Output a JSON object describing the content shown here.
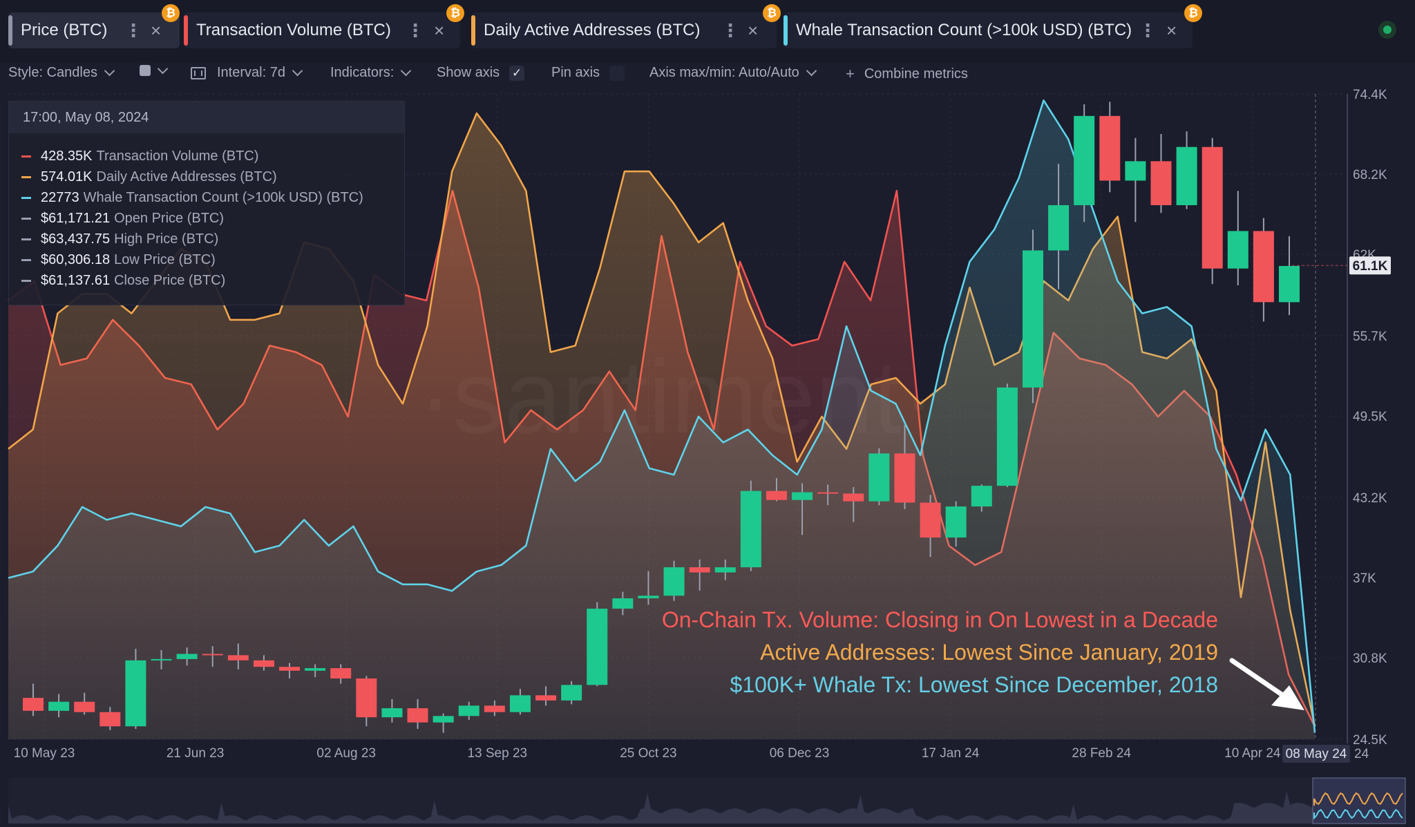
{
  "tabs": [
    {
      "label": "Price (BTC)",
      "color": "#8f93a6",
      "active": true
    },
    {
      "label": "Transaction Volume (BTC)",
      "color": "#ef5350",
      "active": false
    },
    {
      "label": "Daily Active Addresses (BTC)",
      "color": "#f2a64a",
      "active": false
    },
    {
      "label": "Whale Transaction Count (>100k USD) (BTC)",
      "color": "#5ed3ea",
      "active": false
    }
  ],
  "coin_badge": "₿",
  "toolbar": {
    "style": "Style: Candles",
    "interval": "Interval: 7d",
    "indicators": "Indicators:",
    "show_axis": "Show axis",
    "show_axis_checked": true,
    "pin_axis": "Pin axis",
    "axis_maxmin": "Axis max/min: Auto/Auto",
    "combine": "Combine metrics"
  },
  "tooltip": {
    "datetime": "17:00, May 08, 2024",
    "rows": [
      {
        "value": "428.35K",
        "label": "Transaction Volume (BTC)",
        "color": "#ef5350"
      },
      {
        "value": "574.01K",
        "label": "Daily Active Addresses (BTC)",
        "color": "#f2a64a"
      },
      {
        "value": "22773",
        "label": "Whale Transaction Count (>100k USD) (BTC)",
        "color": "#5ed3ea"
      },
      {
        "value": "$61,171.21",
        "label": "Open Price (BTC)",
        "color": "#9a9db0"
      },
      {
        "value": "$63,437.75",
        "label": "High Price (BTC)",
        "color": "#9a9db0"
      },
      {
        "value": "$60,306.18",
        "label": "Low Price (BTC)",
        "color": "#9a9db0"
      },
      {
        "value": "$61,137.61",
        "label": "Close Price (BTC)",
        "color": "#9a9db0"
      }
    ]
  },
  "annotations": [
    "On-Chain Tx. Volume: Closing in On Lowest in a Decade",
    "Active Addresses: Lowest Since January, 2019",
    "$100K+ Whale Tx: Lowest Since December, 2018"
  ],
  "watermark": "·santiment·",
  "chart_data": {
    "type": "line",
    "price_axis": {
      "ticks": [
        "74.4K",
        "68.2K",
        "62K",
        "55.7K",
        "49.5K",
        "43.2K",
        "37K",
        "30.8K",
        "24.5K"
      ],
      "tick_values": [
        74400,
        68200,
        62000,
        55700,
        49500,
        43200,
        37000,
        30800,
        24500
      ],
      "current_price_label": "61.1K",
      "current_price_value": 61137.61
    },
    "x_labels": [
      "10 May 23",
      "21 Jun 23",
      "02 Aug 23",
      "13 Sep 23",
      "25 Oct 23",
      "06 Dec 23",
      "17 Jan 24",
      "28 Feb 24",
      "10 Apr 24"
    ],
    "x_cursor_label": "08 May 24",
    "x_cursor_suffix": "24",
    "candles": [
      {
        "o": 27700,
        "h": 28800,
        "l": 26300,
        "c": 26700
      },
      {
        "o": 26700,
        "h": 28000,
        "l": 26200,
        "c": 27400
      },
      {
        "o": 27400,
        "h": 28100,
        "l": 26400,
        "c": 26600
      },
      {
        "o": 26600,
        "h": 27000,
        "l": 25200,
        "c": 25500
      },
      {
        "o": 25500,
        "h": 31500,
        "l": 25300,
        "c": 30600
      },
      {
        "o": 30600,
        "h": 31400,
        "l": 29900,
        "c": 30700
      },
      {
        "o": 30700,
        "h": 31600,
        "l": 30200,
        "c": 31100
      },
      {
        "o": 31100,
        "h": 31700,
        "l": 30100,
        "c": 31000
      },
      {
        "o": 31000,
        "h": 31900,
        "l": 29900,
        "c": 30600
      },
      {
        "o": 30600,
        "h": 31000,
        "l": 29800,
        "c": 30100
      },
      {
        "o": 30100,
        "h": 30400,
        "l": 29200,
        "c": 29800
      },
      {
        "o": 29800,
        "h": 30300,
        "l": 29300,
        "c": 30000
      },
      {
        "o": 30000,
        "h": 30300,
        "l": 28800,
        "c": 29200
      },
      {
        "o": 29200,
        "h": 29400,
        "l": 25500,
        "c": 26200
      },
      {
        "o": 26200,
        "h": 27600,
        "l": 25800,
        "c": 26900
      },
      {
        "o": 26900,
        "h": 27600,
        "l": 25300,
        "c": 25800
      },
      {
        "o": 25800,
        "h": 26500,
        "l": 25000,
        "c": 26300
      },
      {
        "o": 26300,
        "h": 27400,
        "l": 26000,
        "c": 27100
      },
      {
        "o": 27100,
        "h": 27500,
        "l": 26300,
        "c": 26600
      },
      {
        "o": 26600,
        "h": 28400,
        "l": 26400,
        "c": 27900
      },
      {
        "o": 27900,
        "h": 28600,
        "l": 27100,
        "c": 27500
      },
      {
        "o": 27500,
        "h": 29000,
        "l": 27200,
        "c": 28700
      },
      {
        "o": 28700,
        "h": 35100,
        "l": 28600,
        "c": 34600
      },
      {
        "o": 34600,
        "h": 35900,
        "l": 34100,
        "c": 35400
      },
      {
        "o": 35400,
        "h": 37500,
        "l": 34900,
        "c": 35600
      },
      {
        "o": 35600,
        "h": 38300,
        "l": 35200,
        "c": 37800
      },
      {
        "o": 37800,
        "h": 38400,
        "l": 36000,
        "c": 37400
      },
      {
        "o": 37400,
        "h": 38400,
        "l": 36800,
        "c": 37800
      },
      {
        "o": 37800,
        "h": 44500,
        "l": 37500,
        "c": 43700
      },
      {
        "o": 43700,
        "h": 44700,
        "l": 42900,
        "c": 43000
      },
      {
        "o": 43000,
        "h": 44300,
        "l": 40300,
        "c": 43600
      },
      {
        "o": 43600,
        "h": 44200,
        "l": 42600,
        "c": 43500
      },
      {
        "o": 43500,
        "h": 44000,
        "l": 41300,
        "c": 42900
      },
      {
        "o": 42900,
        "h": 47000,
        "l": 42600,
        "c": 46600
      },
      {
        "o": 46600,
        "h": 48800,
        "l": 42300,
        "c": 42800
      },
      {
        "o": 42800,
        "h": 43400,
        "l": 38600,
        "c": 40100
      },
      {
        "o": 40100,
        "h": 42900,
        "l": 39400,
        "c": 42500
      },
      {
        "o": 42500,
        "h": 44200,
        "l": 42100,
        "c": 44100
      },
      {
        "o": 44100,
        "h": 52000,
        "l": 44000,
        "c": 51700
      },
      {
        "o": 51700,
        "h": 63900,
        "l": 50500,
        "c": 62300
      },
      {
        "o": 62300,
        "h": 69000,
        "l": 59300,
        "c": 65800
      },
      {
        "o": 65800,
        "h": 73600,
        "l": 64500,
        "c": 72700
      },
      {
        "o": 72700,
        "h": 73800,
        "l": 66800,
        "c": 67700
      },
      {
        "o": 67700,
        "h": 71000,
        "l": 64500,
        "c": 69200
      },
      {
        "o": 69200,
        "h": 71300,
        "l": 65200,
        "c": 65800
      },
      {
        "o": 65800,
        "h": 71500,
        "l": 65500,
        "c": 70300
      },
      {
        "o": 70300,
        "h": 71000,
        "l": 59700,
        "c": 60900
      },
      {
        "o": 60900,
        "h": 66900,
        "l": 59600,
        "c": 63800
      },
      {
        "o": 63800,
        "h": 64800,
        "l": 56800,
        "c": 58300
      },
      {
        "o": 58300,
        "h": 63400,
        "l": 57300,
        "c": 61100
      }
    ],
    "series": [
      {
        "name": "Transaction Volume (BTC)",
        "color": "#ef5350",
        "values": [
          0.68,
          0.71,
          0.58,
          0.59,
          0.65,
          0.61,
          0.56,
          0.55,
          0.48,
          0.52,
          0.61,
          0.6,
          0.58,
          0.5,
          0.72,
          0.69,
          0.68,
          0.85,
          0.7,
          0.46,
          0.51,
          0.48,
          0.51,
          0.57,
          0.51,
          0.78,
          0.6,
          0.48,
          0.74,
          0.64,
          0.61,
          0.62,
          0.74,
          0.68,
          0.85,
          0.44,
          0.3,
          0.27,
          0.29,
          0.46,
          0.63,
          0.59,
          0.58,
          0.55,
          0.5,
          0.54,
          0.5,
          0.41,
          0.28,
          0.1,
          0.02
        ]
      },
      {
        "name": "Daily Active Addresses (BTC)",
        "color": "#f2a64a",
        "values": [
          0.45,
          0.48,
          0.66,
          0.69,
          0.69,
          0.66,
          0.71,
          0.76,
          0.74,
          0.65,
          0.65,
          0.66,
          0.77,
          0.76,
          0.71,
          0.58,
          0.52,
          0.64,
          0.88,
          0.97,
          0.92,
          0.85,
          0.6,
          0.61,
          0.73,
          0.88,
          0.88,
          0.83,
          0.77,
          0.8,
          0.68,
          0.59,
          0.43,
          0.5,
          0.45,
          0.55,
          0.56,
          0.52,
          0.55,
          0.7,
          0.58,
          0.6,
          0.71,
          0.68,
          0.76,
          0.81,
          0.6,
          0.59,
          0.62,
          0.54,
          0.22,
          0.46,
          0.2,
          0.02
        ]
      },
      {
        "name": "Whale Transaction Count (>100k USD) (BTC)",
        "color": "#5ed3ea",
        "values": [
          0.25,
          0.26,
          0.3,
          0.36,
          0.34,
          0.35,
          0.34,
          0.33,
          0.36,
          0.35,
          0.29,
          0.3,
          0.34,
          0.3,
          0.33,
          0.26,
          0.24,
          0.24,
          0.23,
          0.26,
          0.27,
          0.3,
          0.45,
          0.4,
          0.43,
          0.51,
          0.42,
          0.41,
          0.5,
          0.46,
          0.48,
          0.44,
          0.41,
          0.48,
          0.64,
          0.54,
          0.52,
          0.44,
          0.61,
          0.74,
          0.79,
          0.87,
          0.99,
          0.93,
          0.82,
          0.71,
          0.66,
          0.67,
          0.64,
          0.45,
          0.37,
          0.48,
          0.41,
          0.01
        ]
      }
    ]
  }
}
